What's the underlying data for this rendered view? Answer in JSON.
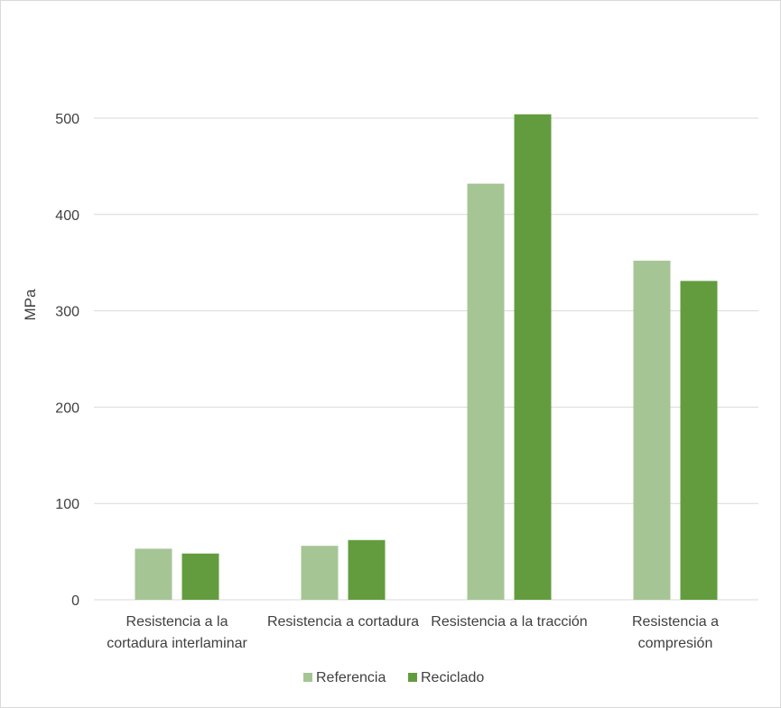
{
  "chart_data": {
    "type": "bar",
    "ylabel": "MPa",
    "ylim": [
      0,
      500
    ],
    "yticks": [
      0,
      100,
      200,
      300,
      400,
      500
    ],
    "grid": true,
    "legend_position": "bottom",
    "categories": [
      [
        "Resistencia a la",
        "cortadura interlaminar"
      ],
      [
        "Resistencia a cortadura"
      ],
      [
        "Resistencia a la tracción"
      ],
      [
        "Resistencia a",
        "compresión"
      ]
    ],
    "series": [
      {
        "name": "Referencia",
        "color": "#a5c595",
        "values": [
          53,
          56,
          432,
          352
        ]
      },
      {
        "name": "Reciclado",
        "color": "#639c3e",
        "values": [
          48,
          62,
          504,
          331
        ]
      }
    ]
  }
}
